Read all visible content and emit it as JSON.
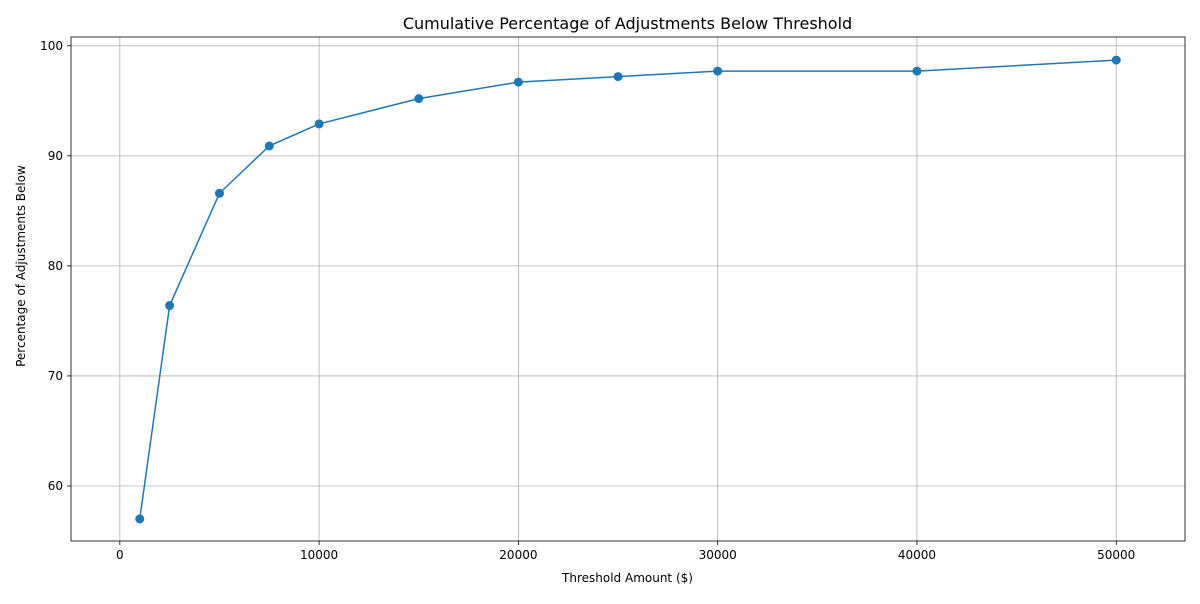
{
  "chart_data": {
    "type": "line",
    "title": "Cumulative Percentage of Adjustments Below Threshold",
    "xlabel": "Threshold Amount ($)",
    "ylabel": "Percentage of Adjustments Below",
    "x": [
      1000,
      2500,
      5000,
      7500,
      10000,
      15000,
      20000,
      25000,
      30000,
      40000,
      50000
    ],
    "series": [
      {
        "values": [
          57.0,
          76.4,
          86.6,
          90.9,
          92.9,
          95.2,
          96.7,
          97.2,
          97.7,
          97.7,
          98.7
        ]
      }
    ],
    "xlim": [
      -2450,
      53450
    ],
    "ylim": [
      55.0,
      100.8
    ],
    "xticks": [
      0,
      10000,
      20000,
      30000,
      40000,
      50000
    ],
    "yticks": [
      60,
      70,
      80,
      90,
      100
    ],
    "grid": true,
    "marker": "circle",
    "colors": {
      "line": "#1f77b4",
      "grid": "#b0b0b0",
      "axis": "#000000"
    }
  }
}
